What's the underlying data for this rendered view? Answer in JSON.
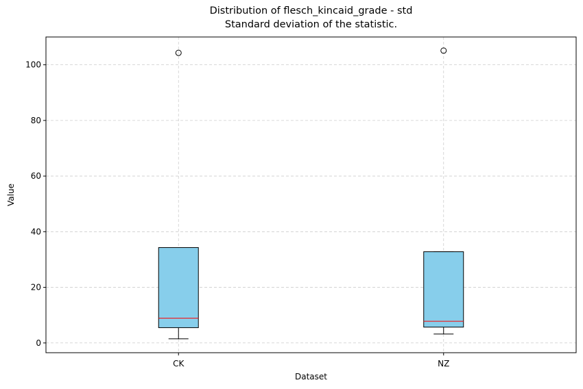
{
  "chart_data": {
    "type": "box",
    "title": "Distribution of flesch_kincaid_grade - std",
    "subtitle": "Standard deviation of the statistic.",
    "xlabel": "Dataset",
    "ylabel": "Value",
    "categories": [
      "CK",
      "NZ"
    ],
    "yticks": [
      0,
      20,
      40,
      60,
      80,
      100
    ],
    "ylim": [
      -3.5,
      110
    ],
    "grid": true,
    "box_color": "#87CEEB",
    "median_color": "#FF0000",
    "boxes": [
      {
        "category": "CK",
        "whisker_low": 1.5,
        "q1": 5.5,
        "median": 8.9,
        "q3": 34.3,
        "whisker_high": 34.3,
        "outliers": [
          104.3
        ]
      },
      {
        "category": "NZ",
        "whisker_low": 3.2,
        "q1": 5.7,
        "median": 7.8,
        "q3": 32.8,
        "whisker_high": 32.8,
        "outliers": [
          105.1
        ]
      }
    ]
  }
}
